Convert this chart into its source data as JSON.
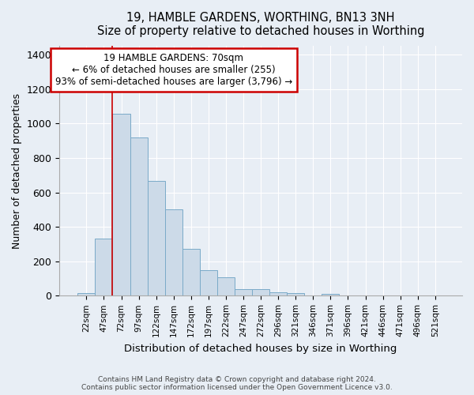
{
  "title": "19, HAMBLE GARDENS, WORTHING, BN13 3NH",
  "subtitle": "Size of property relative to detached houses in Worthing",
  "xlabel": "Distribution of detached houses by size in Worthing",
  "ylabel": "Number of detached properties",
  "bar_labels": [
    "22sqm",
    "47sqm",
    "72sqm",
    "97sqm",
    "122sqm",
    "147sqm",
    "172sqm",
    "197sqm",
    "222sqm",
    "247sqm",
    "272sqm",
    "296sqm",
    "321sqm",
    "346sqm",
    "371sqm",
    "396sqm",
    "421sqm",
    "446sqm",
    "471sqm",
    "496sqm",
    "521sqm"
  ],
  "bar_values": [
    15,
    330,
    1055,
    920,
    665,
    500,
    270,
    150,
    105,
    40,
    40,
    20,
    15,
    0,
    10,
    0,
    0,
    0,
    0,
    0,
    0
  ],
  "bar_color": "#ccdae8",
  "bar_edge_color": "#7aaac8",
  "ylim": [
    0,
    1450
  ],
  "yticks": [
    0,
    200,
    400,
    600,
    800,
    1000,
    1200,
    1400
  ],
  "vline_x_index": 1.5,
  "annotation_text": "19 HAMBLE GARDENS: 70sqm\n← 6% of detached houses are smaller (255)\n93% of semi-detached houses are larger (3,796) →",
  "annotation_box_facecolor": "#ffffff",
  "annotation_box_edgecolor": "#cc0000",
  "footer_text": "Contains HM Land Registry data © Crown copyright and database right 2024.\nContains public sector information licensed under the Open Government Licence v3.0.",
  "bg_color": "#e8eef5",
  "plot_bg_color": "#e8eef5",
  "grid_color": "#ffffff",
  "vline_color": "#cc0000"
}
